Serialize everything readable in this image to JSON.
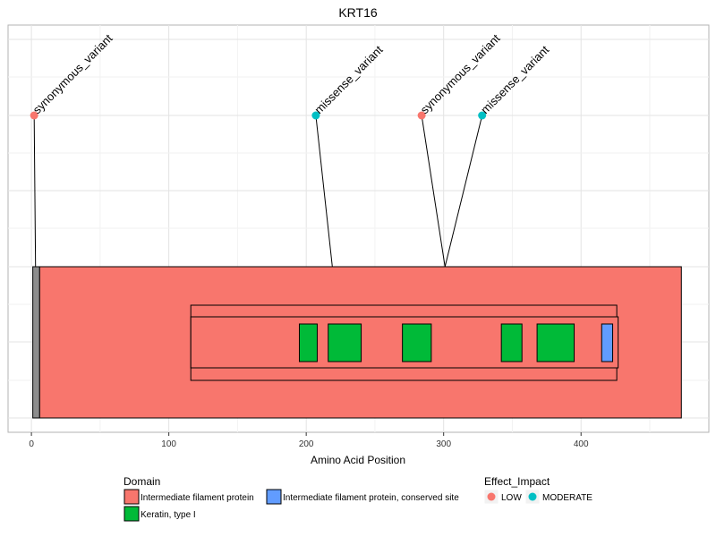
{
  "chart_data": {
    "type": "lollipop",
    "title": "KRT16",
    "xlabel": "Amino Acid Position",
    "ylabel": "",
    "xlim": [
      -17,
      493
    ],
    "x_ticks": [
      0,
      100,
      200,
      300,
      400
    ],
    "grid": true,
    "protein_length": 473,
    "variants": [
      {
        "effect": "synonymous_variant",
        "impact": "LOW",
        "position": 3,
        "label_x": 2
      },
      {
        "effect": "missense_variant",
        "impact": "MODERATE",
        "position": 219,
        "label_x": 207
      },
      {
        "effect": "synonymous_variant",
        "impact": "LOW",
        "position": 301,
        "label_x": 284
      },
      {
        "effect": "missense_variant",
        "impact": "MODERATE",
        "position": 301,
        "label_x": 328
      }
    ],
    "domains": [
      {
        "name": "Intermediate filament protein",
        "start": 6,
        "end": 473,
        "track": "protein"
      },
      {
        "name": "Intermediate filament protein",
        "start": 116,
        "end": 426,
        "track": "outer"
      },
      {
        "name": "Intermediate filament protein",
        "start": 116,
        "end": 427,
        "track": "middle"
      },
      {
        "name": "Keratin, type I",
        "start": 195,
        "end": 208,
        "track": "inner"
      },
      {
        "name": "Keratin, type I",
        "start": 216,
        "end": 240,
        "track": "inner"
      },
      {
        "name": "Keratin, type I",
        "start": 270,
        "end": 291,
        "track": "inner"
      },
      {
        "name": "Keratin, type I",
        "start": 342,
        "end": 357,
        "track": "inner"
      },
      {
        "name": "Keratin, type I",
        "start": 368,
        "end": 395,
        "track": "inner"
      },
      {
        "name": "Intermediate filament protein, conserved site",
        "start": 415,
        "end": 423,
        "track": "inner"
      }
    ],
    "legend": {
      "domain_title": "Domain",
      "domain_entries": [
        {
          "label": "Intermediate filament protein",
          "color": "#F8766D"
        },
        {
          "label": "Intermediate filament protein, conserved site",
          "color": "#619CFF"
        },
        {
          "label": "Keratin, type I",
          "color": "#00BA38"
        }
      ],
      "impact_title": "Effect_Impact",
      "impact_entries": [
        {
          "label": "LOW",
          "color": "#F8766D"
        },
        {
          "label": "MODERATE",
          "color": "#00BFC4"
        }
      ]
    }
  },
  "colors": {
    "protein_backbone": "#8C8C8C",
    "ifp": "#F8766D",
    "keratin": "#00BA38",
    "conserved": "#619CFF",
    "low": "#F8766D",
    "moderate": "#00BFC4"
  }
}
